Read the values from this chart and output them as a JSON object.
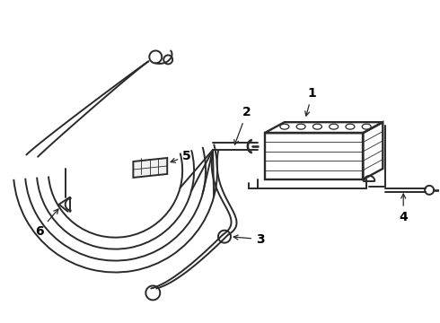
{
  "bg_color": "#ffffff",
  "line_color": "#2a2a2a",
  "lw": 1.4,
  "fig_w": 4.9,
  "fig_h": 3.6,
  "dpi": 100
}
